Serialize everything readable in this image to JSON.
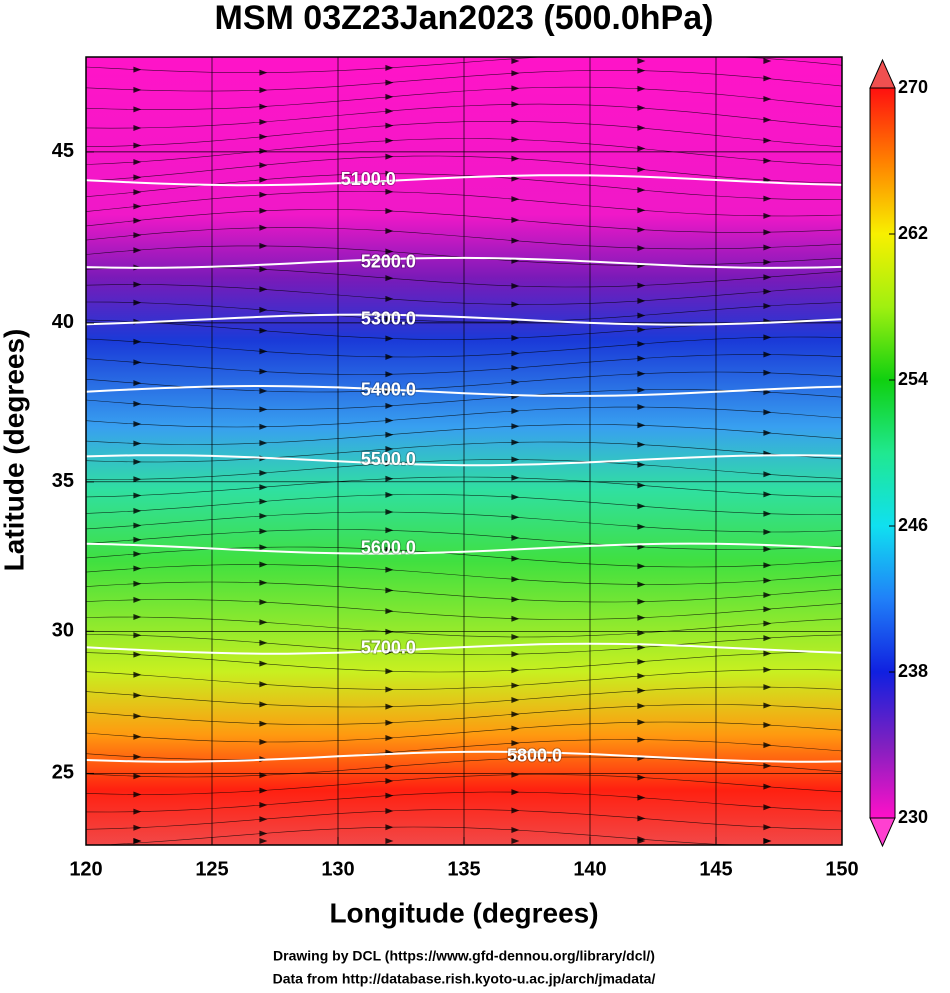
{
  "chart_data": {
    "type": "map",
    "title": "MSM 03Z23Jan2023 (500.0hPa)",
    "x_label": "Longitude (degrees)",
    "y_label": "Latitude  (degrees)",
    "projection": "mercator",
    "xlim": [
      120,
      150
    ],
    "xticks": [
      120,
      125,
      130,
      135,
      140,
      145,
      150
    ],
    "ylim": [
      22.4,
      47.6
    ],
    "yticks": [
      25,
      30,
      35,
      40,
      45
    ],
    "grid": true,
    "colorbar": {
      "clim": [
        230,
        270
      ],
      "ticks": [
        230,
        238,
        246,
        254,
        262,
        270
      ]
    },
    "contours": [
      {
        "value": 5100,
        "label": "5100.0",
        "lat": 44.2,
        "label_lon": 131.2
      },
      {
        "value": 5200,
        "label": "5200.0",
        "lat": 41.8,
        "label_lon": 132.0
      },
      {
        "value": 5300,
        "label": "5300.0",
        "lat": 40.1,
        "label_lon": 132.0
      },
      {
        "value": 5400,
        "label": "5400.0",
        "lat": 37.9,
        "label_lon": 132.0
      },
      {
        "value": 5500,
        "label": "5500.0",
        "lat": 35.7,
        "label_lon": 132.0
      },
      {
        "value": 5600,
        "label": "5600.0",
        "lat": 32.8,
        "label_lon": 132.0
      },
      {
        "value": 5700,
        "label": "5700.0",
        "lat": 29.4,
        "label_lon": 132.0
      },
      {
        "value": 5800,
        "label": "5800.0",
        "lat": 25.6,
        "label_lon": 137.8
      }
    ],
    "notes": [
      "Drawing by DCL (https://www.gfd-dennou.org/library/dcl/)",
      "Data from http://database.rish.kyoto-u.ac.jp/arch/jmadata/"
    ]
  }
}
